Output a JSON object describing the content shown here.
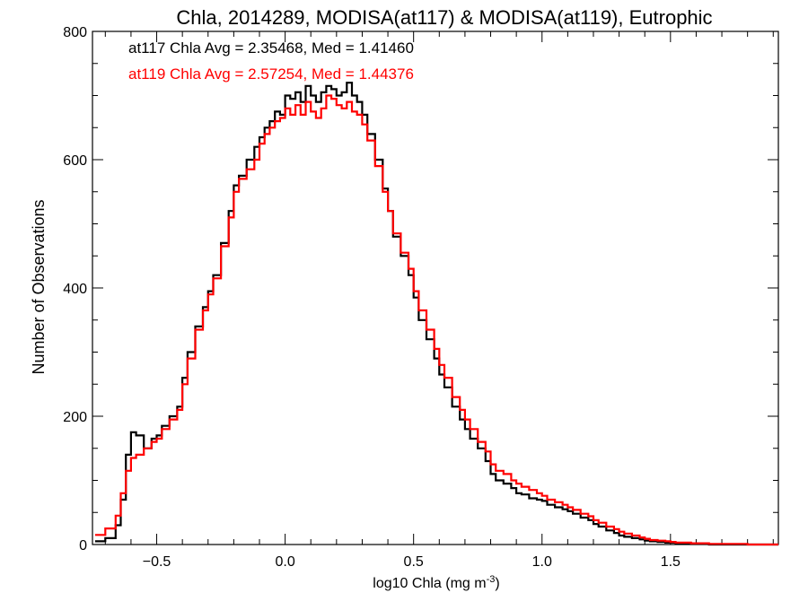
{
  "chart_data": {
    "type": "line",
    "title": "Chla, 2014289, MODISA(at117) & MODISA(at119), Eutrophic",
    "xlabel": "log10 Chla (mg m",
    "xlabel_sup": "-3",
    "xlabel_end": ")",
    "ylabel": "Number of Observations",
    "xlim": [
      -0.75,
      1.92
    ],
    "ylim": [
      0,
      800
    ],
    "xticks": [
      -0.5,
      0.0,
      0.5,
      1.0,
      1.5
    ],
    "xtick_labels": [
      "−0.5",
      "0.0",
      "0.5",
      "1.0",
      "1.5"
    ],
    "yticks": [
      0,
      200,
      400,
      600,
      800
    ],
    "ytick_labels": [
      "0",
      "200",
      "400",
      "600",
      "800"
    ],
    "grid": false,
    "annotations": [
      {
        "text": "at117 Chla Avg = 2.35468, Med = 1.41460",
        "color": "#000000"
      },
      {
        "text": "at119 Chla Avg = 2.57254, Med = 1.44376",
        "color": "#ff0000"
      }
    ],
    "series": [
      {
        "color": "#000000",
        "x": [
          -0.74,
          -0.7,
          -0.66,
          -0.64,
          -0.62,
          -0.6,
          -0.58,
          -0.55,
          -0.52,
          -0.5,
          -0.48,
          -0.45,
          -0.42,
          -0.4,
          -0.38,
          -0.35,
          -0.32,
          -0.3,
          -0.28,
          -0.25,
          -0.22,
          -0.2,
          -0.18,
          -0.15,
          -0.12,
          -0.1,
          -0.08,
          -0.06,
          -0.04,
          -0.02,
          0.0,
          0.02,
          0.04,
          0.06,
          0.08,
          0.1,
          0.12,
          0.14,
          0.16,
          0.18,
          0.2,
          0.22,
          0.24,
          0.26,
          0.28,
          0.3,
          0.32,
          0.35,
          0.38,
          0.4,
          0.42,
          0.45,
          0.48,
          0.5,
          0.52,
          0.55,
          0.58,
          0.6,
          0.62,
          0.65,
          0.68,
          0.7,
          0.72,
          0.75,
          0.78,
          0.8,
          0.82,
          0.85,
          0.88,
          0.9,
          0.92,
          0.95,
          0.98,
          1.0,
          1.02,
          1.05,
          1.08,
          1.1,
          1.12,
          1.15,
          1.18,
          1.2,
          1.22,
          1.25,
          1.28,
          1.3,
          1.32,
          1.35,
          1.38,
          1.4,
          1.42,
          1.45,
          1.48,
          1.5,
          1.52,
          1.55,
          1.58,
          1.6,
          1.62,
          1.65,
          1.68,
          1.7,
          1.72,
          1.75,
          1.78,
          1.8,
          1.82,
          1.85,
          1.88,
          1.9
        ],
        "y": [
          5,
          10,
          30,
          70,
          140,
          175,
          170,
          150,
          165,
          170,
          185,
          200,
          215,
          260,
          300,
          340,
          370,
          395,
          420,
          470,
          520,
          560,
          575,
          600,
          620,
          635,
          650,
          660,
          675,
          670,
          700,
          695,
          705,
          690,
          715,
          700,
          690,
          705,
          715,
          710,
          700,
          705,
          720,
          700,
          690,
          670,
          640,
          600,
          555,
          520,
          480,
          450,
          420,
          385,
          350,
          320,
          290,
          265,
          245,
          215,
          195,
          180,
          165,
          150,
          130,
          110,
          100,
          95,
          88,
          80,
          78,
          72,
          70,
          68,
          62,
          58,
          55,
          52,
          48,
          42,
          38,
          32,
          28,
          22,
          18,
          14,
          12,
          10,
          8,
          6,
          5,
          4,
          3,
          3,
          2,
          2,
          1,
          1,
          1,
          0,
          0,
          0,
          0,
          0,
          0,
          0,
          0,
          0,
          0,
          0
        ]
      },
      {
        "color": "#ff0000",
        "x": [
          -0.74,
          -0.7,
          -0.66,
          -0.64,
          -0.62,
          -0.6,
          -0.58,
          -0.55,
          -0.52,
          -0.5,
          -0.48,
          -0.45,
          -0.42,
          -0.4,
          -0.38,
          -0.35,
          -0.32,
          -0.3,
          -0.28,
          -0.25,
          -0.22,
          -0.2,
          -0.18,
          -0.15,
          -0.12,
          -0.1,
          -0.08,
          -0.06,
          -0.04,
          -0.02,
          0.0,
          0.02,
          0.04,
          0.06,
          0.08,
          0.1,
          0.12,
          0.14,
          0.16,
          0.18,
          0.2,
          0.22,
          0.24,
          0.26,
          0.28,
          0.3,
          0.32,
          0.35,
          0.38,
          0.4,
          0.42,
          0.45,
          0.48,
          0.5,
          0.52,
          0.55,
          0.58,
          0.6,
          0.62,
          0.65,
          0.68,
          0.7,
          0.72,
          0.75,
          0.78,
          0.8,
          0.82,
          0.85,
          0.88,
          0.9,
          0.92,
          0.95,
          0.98,
          1.0,
          1.02,
          1.05,
          1.08,
          1.1,
          1.12,
          1.15,
          1.18,
          1.2,
          1.22,
          1.25,
          1.28,
          1.3,
          1.32,
          1.35,
          1.38,
          1.4,
          1.42,
          1.45,
          1.48,
          1.5,
          1.52,
          1.55,
          1.58,
          1.6,
          1.62,
          1.65,
          1.68,
          1.7,
          1.72,
          1.75,
          1.78,
          1.8,
          1.82,
          1.85,
          1.88,
          1.9
        ],
        "y": [
          15,
          25,
          45,
          80,
          115,
          135,
          140,
          150,
          160,
          165,
          180,
          195,
          210,
          250,
          290,
          335,
          365,
          390,
          415,
          465,
          510,
          550,
          570,
          585,
          600,
          625,
          640,
          650,
          660,
          665,
          680,
          670,
          685,
          670,
          690,
          675,
          665,
          680,
          700,
          695,
          685,
          680,
          690,
          675,
          670,
          655,
          630,
          590,
          550,
          520,
          485,
          455,
          430,
          395,
          365,
          335,
          305,
          280,
          260,
          230,
          210,
          195,
          180,
          160,
          145,
          125,
          115,
          110,
          100,
          95,
          90,
          85,
          80,
          76,
          70,
          66,
          62,
          58,
          54,
          48,
          44,
          38,
          34,
          28,
          24,
          20,
          17,
          14,
          11,
          9,
          7,
          6,
          5,
          4,
          3,
          3,
          2,
          2,
          2,
          1,
          1,
          1,
          1,
          1,
          1,
          0,
          0,
          0,
          0,
          0
        ]
      }
    ]
  }
}
